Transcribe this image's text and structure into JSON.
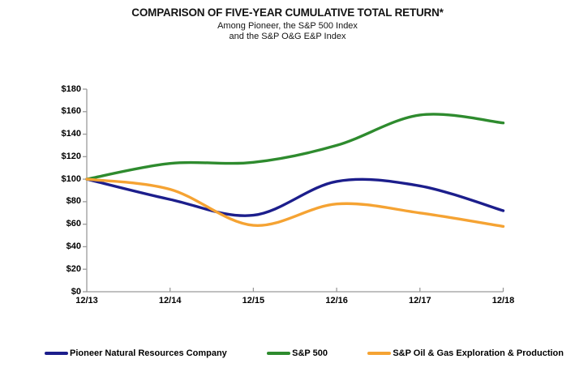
{
  "title": "COMPARISON OF FIVE-YEAR CUMULATIVE TOTAL RETURN*",
  "subtitle_line1": "Among Pioneer, the S&P 500 Index",
  "subtitle_line2": "and the S&P O&G E&P Index",
  "chart_data": {
    "type": "line",
    "categories": [
      "12/13",
      "12/14",
      "12/15",
      "12/16",
      "12/17",
      "12/18"
    ],
    "series": [
      {
        "name": "Pioneer Natural Resources Company",
        "color": "#1c1e8c",
        "values": [
          100,
          82,
          68,
          98,
          94,
          72
        ]
      },
      {
        "name": "S&P 500",
        "color": "#2e8b2e",
        "values": [
          100,
          114,
          115,
          130,
          157,
          150
        ]
      },
      {
        "name": "S&P Oil & Gas Exploration & Production",
        "color": "#f5a333",
        "values": [
          100,
          91,
          59,
          78,
          70,
          58
        ]
      }
    ],
    "xlabel": "",
    "ylabel": "",
    "ylim": [
      0,
      180
    ],
    "y_tick_step": 20,
    "y_ticks": [
      "$0",
      "$20",
      "$40",
      "$60",
      "$80",
      "$100",
      "$120",
      "$140",
      "$160",
      "$180"
    ],
    "grid": false,
    "legend_position": "bottom",
    "axis_color": "#9a9a9a",
    "smooth": true
  }
}
